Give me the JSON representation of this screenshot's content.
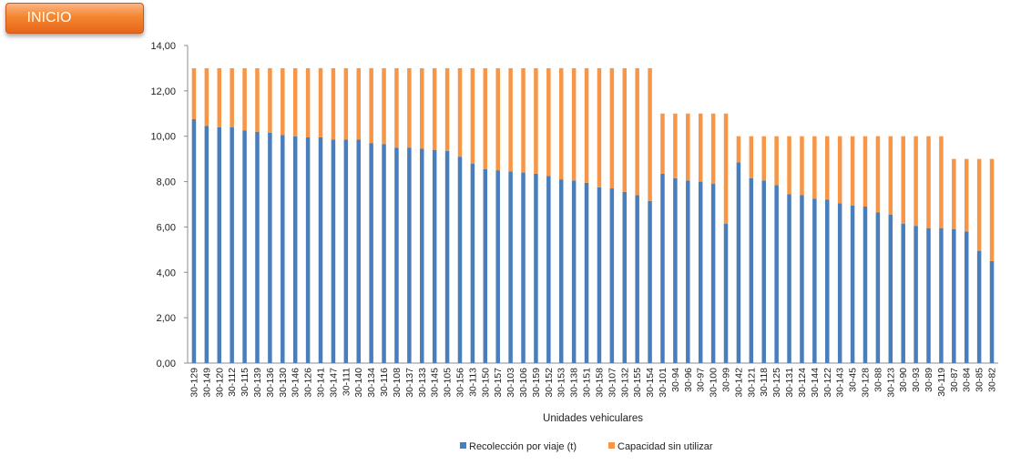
{
  "button": {
    "label": "INICIO"
  },
  "colors": {
    "collected": "#4a7ebb",
    "unused": "#f79646",
    "button": "#f4862f"
  },
  "chart_data": {
    "type": "bar",
    "stacked": true,
    "xlabel": "Unidades vehiculares",
    "ylabel": "",
    "ylim": [
      0,
      14
    ],
    "yticks": [
      "0,00",
      "2,00",
      "4,00",
      "6,00",
      "8,00",
      "10,00",
      "12,00",
      "14,00"
    ],
    "legend_position": "bottom",
    "categories": [
      "30-129",
      "30-149",
      "30-120",
      "30-112",
      "30-115",
      "30-139",
      "30-136",
      "30-130",
      "30-146",
      "30-126",
      "30-141",
      "30-147",
      "30-111",
      "30-140",
      "30-134",
      "30-116",
      "30-108",
      "30-137",
      "30-133",
      "30-145",
      "30-105",
      "30-156",
      "30-113",
      "30-150",
      "30-157",
      "30-103",
      "30-106",
      "30-159",
      "30-152",
      "30-153",
      "30-138",
      "30-151",
      "30-158",
      "30-107",
      "30-132",
      "30-155",
      "30-154",
      "30-101",
      "30-94",
      "30-96",
      "30-97",
      "30-100",
      "30-99",
      "30-142",
      "30-121",
      "30-118",
      "30-125",
      "30-131",
      "30-124",
      "30-144",
      "30-122",
      "30-143",
      "30-45",
      "30-128",
      "30-88",
      "30-123",
      "30-90",
      "30-93",
      "30-89",
      "30-119",
      "30-87",
      "30-84",
      "30-85",
      "30-82"
    ],
    "series": [
      {
        "name": "Recolección por viaje (t)",
        "values": [
          10.75,
          10.45,
          10.4,
          10.4,
          10.25,
          10.2,
          10.15,
          10.05,
          10.0,
          9.95,
          9.95,
          9.85,
          9.85,
          9.85,
          9.7,
          9.65,
          9.5,
          9.5,
          9.45,
          9.4,
          9.35,
          9.1,
          8.8,
          8.55,
          8.5,
          8.45,
          8.4,
          8.35,
          8.25,
          8.1,
          8.05,
          7.95,
          7.75,
          7.7,
          7.55,
          7.4,
          7.15,
          8.35,
          8.15,
          8.05,
          8.0,
          7.9,
          6.15,
          8.85,
          8.15,
          8.05,
          7.85,
          7.45,
          7.4,
          7.25,
          7.2,
          7.05,
          6.95,
          6.9,
          6.65,
          6.55,
          6.15,
          6.05,
          5.95,
          5.95,
          5.9,
          5.8,
          4.95,
          4.5
        ]
      },
      {
        "name": "Capacidad sin utilizar",
        "values": [
          2.25,
          2.55,
          2.6,
          2.6,
          2.75,
          2.8,
          2.85,
          2.95,
          3.0,
          3.05,
          3.05,
          3.15,
          3.15,
          3.15,
          3.3,
          3.35,
          3.5,
          3.5,
          3.55,
          3.6,
          3.65,
          3.9,
          4.2,
          4.45,
          4.5,
          4.55,
          4.6,
          4.65,
          4.75,
          4.9,
          4.95,
          5.05,
          5.25,
          5.3,
          5.45,
          5.6,
          5.85,
          2.65,
          2.85,
          2.95,
          3.0,
          3.1,
          4.85,
          1.15,
          1.85,
          1.95,
          2.15,
          2.55,
          2.6,
          2.75,
          2.8,
          2.95,
          3.05,
          3.1,
          3.35,
          3.45,
          3.85,
          3.95,
          4.05,
          4.05,
          3.1,
          3.2,
          4.05,
          4.5
        ]
      }
    ]
  }
}
